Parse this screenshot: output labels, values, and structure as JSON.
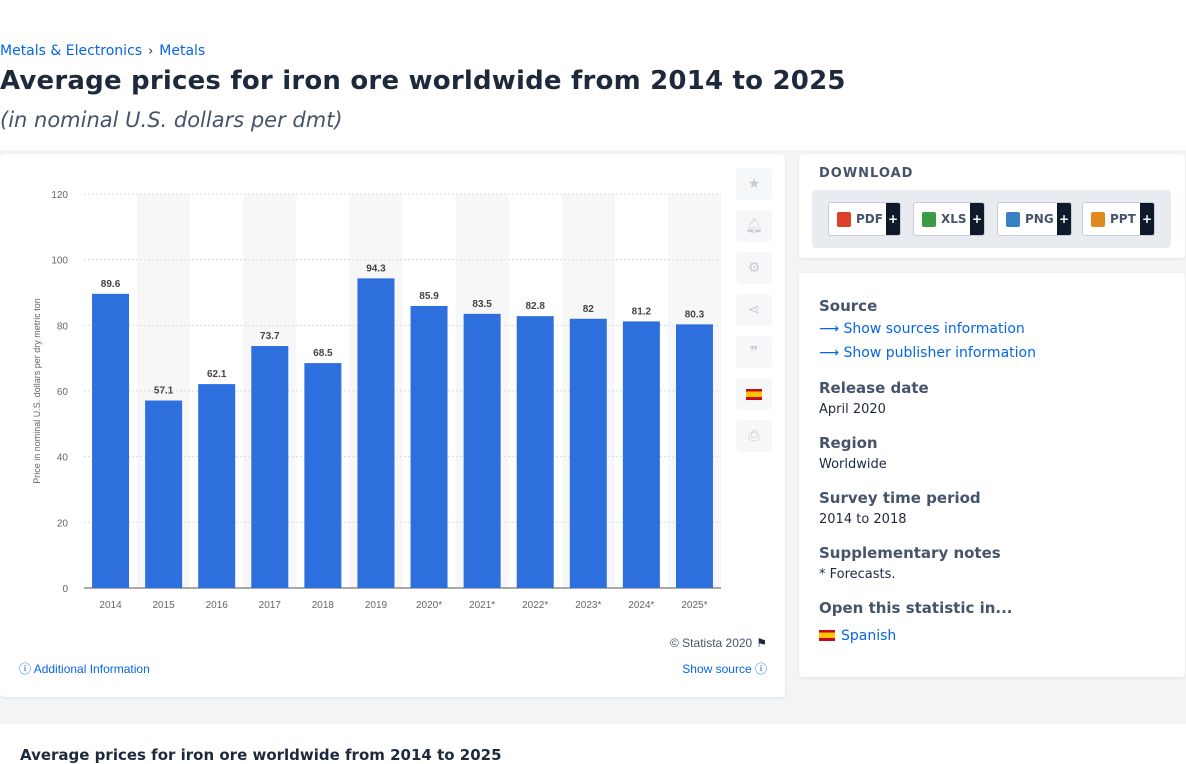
{
  "breadcrumb": [
    {
      "label": "Metals & Electronics"
    },
    {
      "label": "Metals"
    }
  ],
  "breadcrumb_sep": "›",
  "title": "Average prices for iron ore worldwide from 2014 to 2025",
  "subtitle": "(in nominal U.S. dollars per dmt)",
  "chart_data": {
    "type": "bar",
    "categories": [
      "2014",
      "2015",
      "2016",
      "2017",
      "2018",
      "2019",
      "2020*",
      "2021*",
      "2022*",
      "2023*",
      "2024*",
      "2025*"
    ],
    "values": [
      89.6,
      57.1,
      62.1,
      73.7,
      68.5,
      94.3,
      85.9,
      83.5,
      82.8,
      82,
      81.2,
      80.3
    ],
    "ylabel": "Price in nominal U.S. dollars per dry metric ton",
    "ylim": [
      0,
      120
    ],
    "yticks": [
      0,
      20,
      40,
      60,
      80,
      100,
      120
    ],
    "grid": true,
    "bar_color": "#2e6fde"
  },
  "chart_footer": {
    "copyright": "© Statista 2020",
    "additional_info": "Additional Information",
    "show_source": "Show source"
  },
  "toolbar_icons": [
    "star-icon",
    "bell-icon",
    "gear-icon",
    "share-icon",
    "quote-icon",
    "spanish-flag-icon",
    "print-icon"
  ],
  "download": {
    "title": "DOWNLOAD",
    "buttons": [
      {
        "label": "PDF",
        "color": "#d9412b"
      },
      {
        "label": "XLS",
        "color": "#3c9a45"
      },
      {
        "label": "PNG",
        "color": "#3b7fc4"
      },
      {
        "label": "PPT",
        "color": "#e08a1e"
      }
    ],
    "plus": "+"
  },
  "info": {
    "source_label": "Source",
    "show_sources": "Show sources information",
    "show_publisher": "Show publisher information",
    "release_date_label": "Release date",
    "release_date": "April 2020",
    "region_label": "Region",
    "region": "Worldwide",
    "survey_period_label": "Survey time period",
    "survey_period": "2014 to 2018",
    "supplementary_label": "Supplementary notes",
    "supplementary": "* Forecasts.",
    "open_in_label": "Open this statistic in...",
    "open_in_language": "Spanish"
  },
  "bottom_title": "Average prices for iron ore worldwide from 2014 to 2025"
}
